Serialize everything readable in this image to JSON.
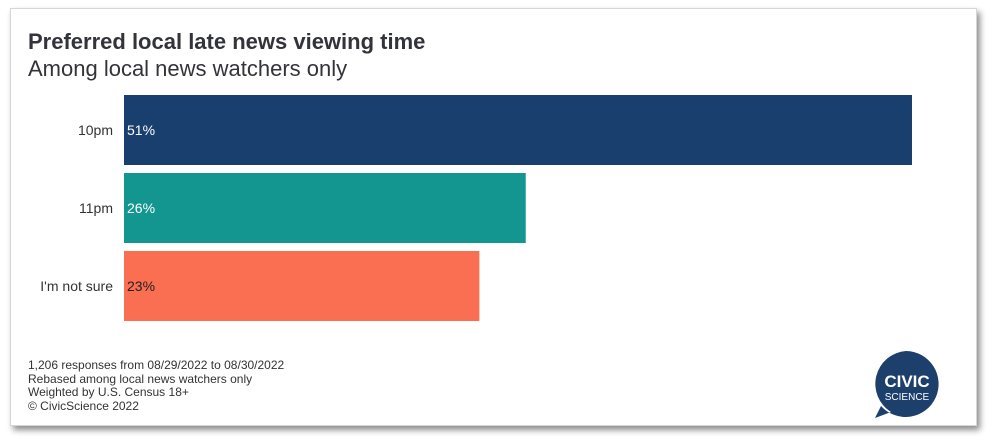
{
  "chart_data": {
    "type": "bar",
    "orientation": "horizontal",
    "title": "Preferred local late news viewing time",
    "subtitle": "Among local news watchers only",
    "categories": [
      "10pm",
      "11pm",
      "I'm not sure"
    ],
    "values": [
      51,
      26,
      23
    ],
    "value_labels": [
      "51%",
      "26%",
      "23%"
    ],
    "bar_colors": [
      "#193f6e",
      "#139590",
      "#fa6e52"
    ],
    "label_colors": [
      "#ffffff",
      "#ffffff",
      "#222222"
    ],
    "xlim": [
      0,
      51
    ],
    "grid": false,
    "legend": "none"
  },
  "footer": {
    "lines": [
      "1,206 responses from 08/29/2022 to 08/30/2022",
      "Rebased among local news watchers only",
      "Weighted by U.S. Census 18+",
      "© CivicScience 2022"
    ]
  },
  "logo": {
    "line1": "CIVIC",
    "line2": "SCIENCE",
    "color": "#1d3f6b"
  }
}
